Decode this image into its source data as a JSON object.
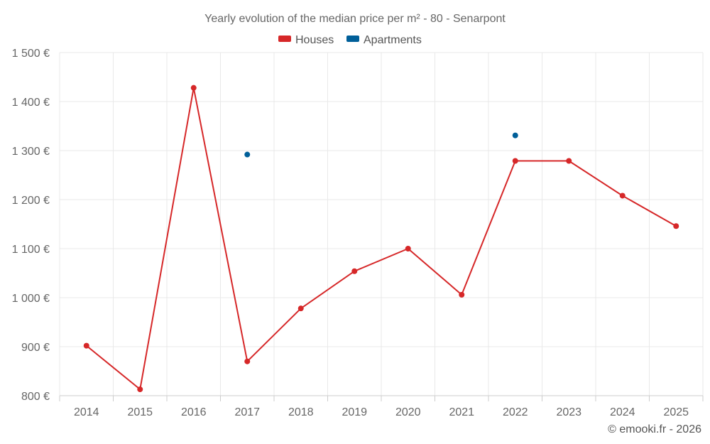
{
  "chart_data": {
    "type": "line",
    "title": "Yearly evolution of the median price per m² - 80 - Senarpont",
    "categories": [
      "2014",
      "2015",
      "2016",
      "2017",
      "2018",
      "2019",
      "2020",
      "2021",
      "2022",
      "2023",
      "2024",
      "2025"
    ],
    "y_ticks": [
      800,
      900,
      1000,
      1100,
      1200,
      1300,
      1400,
      1500
    ],
    "y_tick_labels": [
      "800 €",
      "900 €",
      "1 000 €",
      "1 100 €",
      "1 200 €",
      "1 300 €",
      "1 400 €",
      "1 500 €"
    ],
    "ylim": [
      800,
      1500
    ],
    "grid": true,
    "legend_position": "top-center",
    "series": [
      {
        "name": "Houses",
        "color": "#d62728",
        "values": [
          902,
          813,
          1428,
          870,
          978,
          1054,
          1100,
          1006,
          1279,
          1279,
          1208,
          1146
        ]
      },
      {
        "name": "Apartments",
        "color": "#005f99",
        "values": [
          null,
          null,
          null,
          1292,
          null,
          null,
          null,
          null,
          1331,
          null,
          null,
          null
        ]
      }
    ]
  },
  "credit": "© emooki.fr - 2026"
}
